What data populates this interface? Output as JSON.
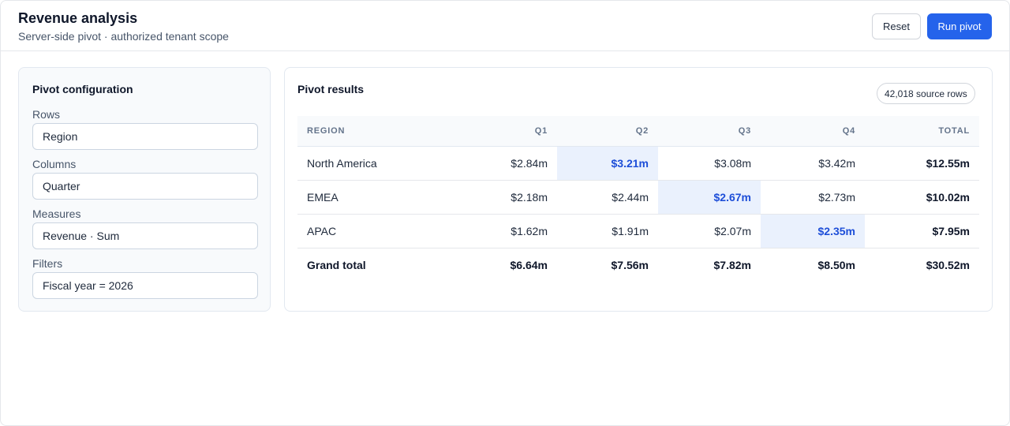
{
  "header": {
    "title": "Revenue analysis",
    "subtitle": "Server-side pivot · authorized tenant scope",
    "reset_label": "Reset",
    "run_label": "Run pivot"
  },
  "config": {
    "title": "Pivot configuration",
    "fields": [
      {
        "label": "Rows",
        "value": "Region"
      },
      {
        "label": "Columns",
        "value": "Quarter"
      },
      {
        "label": "Measures",
        "value": "Revenue · Sum"
      },
      {
        "label": "Filters",
        "value": "Fiscal year = 2026"
      }
    ]
  },
  "results": {
    "title": "Pivot results",
    "source_rows": "42,018 source rows",
    "columns": [
      "REGION",
      "Q1",
      "Q2",
      "Q3",
      "Q4",
      "TOTAL"
    ],
    "rows": [
      {
        "region": "North America",
        "q1": "$2.84m",
        "q2": "$3.21m",
        "q3": "$3.08m",
        "q4": "$3.42m",
        "total": "$12.55m",
        "highlight": "q2"
      },
      {
        "region": "EMEA",
        "q1": "$2.18m",
        "q2": "$2.44m",
        "q3": "$2.67m",
        "q4": "$2.73m",
        "total": "$10.02m",
        "highlight": "q3"
      },
      {
        "region": "APAC",
        "q1": "$1.62m",
        "q2": "$1.91m",
        "q3": "$2.07m",
        "q4": "$2.35m",
        "total": "$7.95m",
        "highlight": "q4"
      }
    ],
    "grand_total": {
      "label": "Grand total",
      "q1": "$6.64m",
      "q2": "$7.56m",
      "q3": "$7.82m",
      "q4": "$8.50m",
      "total": "$30.52m"
    },
    "colors": {
      "highlight_bg": "#eaf1fd",
      "highlight_text": "#1d4ed8",
      "primary": "#2563eb"
    }
  }
}
